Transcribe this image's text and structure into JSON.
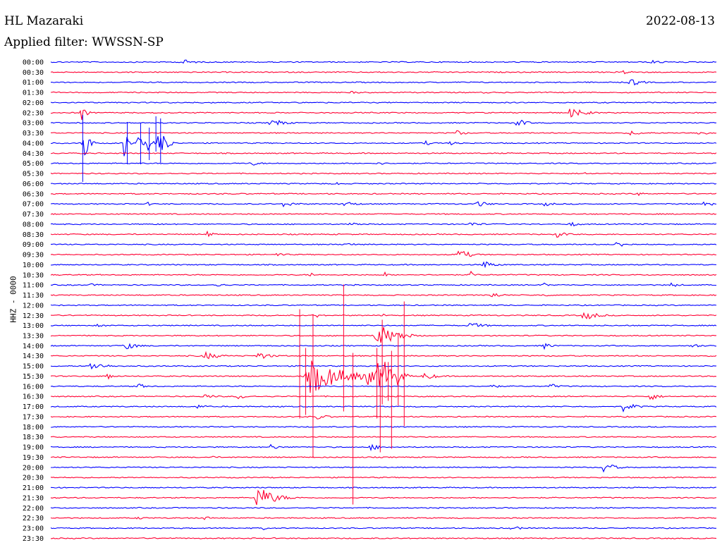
{
  "header": {
    "station": "HL Mazaraki",
    "filter": "Applied filter: WWSSN-SP",
    "date": "2022-08-13"
  },
  "chart_data": {
    "type": "line",
    "title": "HL Mazaraki",
    "subtitle": "Applied filter: WWSSN-SP",
    "date": "2022-08-13",
    "ylabel": "HHZ - 0000",
    "row_labels": [
      "00:00",
      "00:30",
      "01:00",
      "01:30",
      "02:00",
      "02:30",
      "03:00",
      "03:30",
      "04:00",
      "04:30",
      "05:00",
      "05:30",
      "06:00",
      "06:30",
      "07:00",
      "07:30",
      "08:00",
      "08:30",
      "09:00",
      "09:30",
      "10:00",
      "10:30",
      "11:00",
      "11:30",
      "12:00",
      "12:30",
      "13:00",
      "13:30",
      "14:00",
      "14:30",
      "15:00",
      "15:30",
      "16:00",
      "16:30",
      "17:00",
      "17:30",
      "18:00",
      "18:30",
      "19:00",
      "19:30",
      "20:00",
      "20:30",
      "21:00",
      "21:30",
      "22:00",
      "22:30",
      "23:00",
      "23:30"
    ],
    "minutes_per_row": 30,
    "colors": [
      "#0000ff",
      "#ff0033"
    ],
    "events": [
      {
        "row": 0,
        "t": 0.195,
        "amp": 5,
        "w": 0.016
      },
      {
        "row": 0,
        "t": 0.9,
        "amp": 3,
        "w": 0.02
      },
      {
        "row": 1,
        "t": 0.86,
        "amp": 3,
        "w": 0.02
      },
      {
        "row": 2,
        "t": 0.87,
        "amp": 6,
        "w": 0.015
      },
      {
        "row": 3,
        "t": 0.45,
        "amp": 2,
        "w": 0.015
      },
      {
        "row": 3,
        "t": 0.65,
        "amp": 2,
        "w": 0.01
      },
      {
        "row": 4,
        "t": 0.24,
        "amp": 3,
        "w": 0.006
      },
      {
        "row": 5,
        "t": 0.045,
        "amp": 14,
        "w": 0.006
      },
      {
        "row": 5,
        "t": 0.78,
        "amp": 7,
        "w": 0.02
      },
      {
        "row": 6,
        "t": 0.33,
        "amp": 7,
        "w": 0.016
      },
      {
        "row": 6,
        "t": 0.7,
        "amp": 8,
        "w": 0.01
      },
      {
        "row": 7,
        "t": 0.61,
        "amp": 4,
        "w": 0.012
      },
      {
        "row": 7,
        "t": 0.87,
        "amp": 3,
        "w": 0.025
      },
      {
        "row": 7,
        "t": 0.97,
        "amp": 3,
        "w": 0.02
      },
      {
        "row": 8,
        "t": 0.048,
        "amp": 55,
        "w": 0.005
      },
      {
        "row": 8,
        "t": 0.11,
        "amp": 30,
        "w": 0.004
      },
      {
        "row": 8,
        "t": 0.13,
        "amp": 26,
        "w": 0.004
      },
      {
        "row": 8,
        "t": 0.145,
        "amp": 22,
        "w": 0.004
      },
      {
        "row": 8,
        "t": 0.165,
        "amp": 30,
        "w": 0.004
      },
      {
        "row": 8,
        "t": 0.175,
        "amp": 18,
        "w": 0.004
      },
      {
        "row": 8,
        "t": 0.16,
        "amp": 20,
        "w": 0.004
      },
      {
        "row": 8,
        "t": 0.56,
        "amp": 4,
        "w": 0.012
      },
      {
        "row": 8,
        "t": 0.6,
        "amp": 4,
        "w": 0.012
      },
      {
        "row": 10,
        "t": 0.3,
        "amp": 4,
        "w": 0.012
      },
      {
        "row": 10,
        "t": 0.49,
        "amp": 3,
        "w": 0.01
      },
      {
        "row": 11,
        "t": 0.8,
        "amp": 2,
        "w": 0.015
      },
      {
        "row": 12,
        "t": 0.43,
        "amp": 3,
        "w": 0.004
      },
      {
        "row": 13,
        "t": 0.88,
        "amp": 4,
        "w": 0.008
      },
      {
        "row": 14,
        "t": 0.145,
        "amp": 3,
        "w": 0.01
      },
      {
        "row": 14,
        "t": 0.35,
        "amp": 5,
        "w": 0.014
      },
      {
        "row": 14,
        "t": 0.44,
        "amp": 5,
        "w": 0.014
      },
      {
        "row": 14,
        "t": 0.64,
        "amp": 5,
        "w": 0.014
      },
      {
        "row": 14,
        "t": 0.74,
        "amp": 4,
        "w": 0.012
      },
      {
        "row": 14,
        "t": 0.98,
        "amp": 5,
        "w": 0.012
      },
      {
        "row": 16,
        "t": 0.16,
        "amp": 3,
        "w": 0.005
      },
      {
        "row": 16,
        "t": 0.45,
        "amp": 4,
        "w": 0.012
      },
      {
        "row": 16,
        "t": 0.63,
        "amp": 4,
        "w": 0.014
      },
      {
        "row": 16,
        "t": 0.78,
        "amp": 4,
        "w": 0.012
      },
      {
        "row": 17,
        "t": 0.235,
        "amp": 8,
        "w": 0.006
      },
      {
        "row": 17,
        "t": 0.76,
        "amp": 5,
        "w": 0.012
      },
      {
        "row": 18,
        "t": 0.44,
        "amp": 4,
        "w": 0.012
      },
      {
        "row": 18,
        "t": 0.85,
        "amp": 5,
        "w": 0.014
      },
      {
        "row": 19,
        "t": 0.34,
        "amp": 4,
        "w": 0.01
      },
      {
        "row": 19,
        "t": 0.61,
        "amp": 10,
        "w": 0.014
      },
      {
        "row": 20,
        "t": 0.65,
        "amp": 6,
        "w": 0.014
      },
      {
        "row": 21,
        "t": 0.39,
        "amp": 6,
        "w": 0.004
      },
      {
        "row": 21,
        "t": 0.5,
        "amp": 6,
        "w": 0.004
      },
      {
        "row": 21,
        "t": 0.63,
        "amp": 6,
        "w": 0.006
      },
      {
        "row": 22,
        "t": 0.06,
        "amp": 2,
        "w": 0.015
      },
      {
        "row": 22,
        "t": 0.25,
        "amp": 4,
        "w": 0.008
      },
      {
        "row": 22,
        "t": 0.74,
        "amp": 4,
        "w": 0.006
      },
      {
        "row": 22,
        "t": 0.93,
        "amp": 4,
        "w": 0.012
      },
      {
        "row": 23,
        "t": 0.66,
        "amp": 5,
        "w": 0.014
      },
      {
        "row": 23,
        "t": 0.74,
        "amp": 8,
        "w": 0.004
      },
      {
        "row": 25,
        "t": 0.4,
        "amp": 6,
        "w": 0.004
      },
      {
        "row": 25,
        "t": 0.5,
        "amp": 3,
        "w": 0.004
      },
      {
        "row": 25,
        "t": 0.8,
        "amp": 8,
        "w": 0.016
      },
      {
        "row": 26,
        "t": 0.07,
        "amp": 2,
        "w": 0.02
      },
      {
        "row": 26,
        "t": 0.63,
        "amp": 5,
        "w": 0.018
      },
      {
        "row": 27,
        "t": 0.49,
        "amp": 20,
        "w": 0.02
      },
      {
        "row": 27,
        "t": 0.52,
        "amp": 10,
        "w": 0.012
      },
      {
        "row": 28,
        "t": 0.11,
        "amp": 6,
        "w": 0.016
      },
      {
        "row": 28,
        "t": 0.74,
        "amp": 5,
        "w": 0.012
      },
      {
        "row": 28,
        "t": 0.96,
        "amp": 5,
        "w": 0.012
      },
      {
        "row": 29,
        "t": 0.23,
        "amp": 6,
        "w": 0.02
      },
      {
        "row": 29,
        "t": 0.31,
        "amp": 6,
        "w": 0.016
      },
      {
        "row": 30,
        "t": 0.06,
        "amp": 6,
        "w": 0.02
      },
      {
        "row": 31,
        "t": 0.084,
        "amp": 8,
        "w": 0.006
      },
      {
        "row": 31,
        "t": 0.39,
        "amp": 25,
        "w": 0.04
      },
      {
        "row": 31,
        "t": 0.475,
        "amp": 18,
        "w": 0.01
      },
      {
        "row": 31,
        "t": 0.49,
        "amp": 22,
        "w": 0.01
      },
      {
        "row": 31,
        "t": 0.5,
        "amp": 26,
        "w": 0.012
      },
      {
        "row": 31,
        "t": 0.52,
        "amp": 16,
        "w": 0.008
      },
      {
        "row": 31,
        "t": 0.56,
        "amp": 6,
        "w": 0.016
      },
      {
        "row": 32,
        "t": 0.13,
        "amp": 5,
        "w": 0.01
      },
      {
        "row": 32,
        "t": 0.66,
        "amp": 4,
        "w": 0.01
      },
      {
        "row": 32,
        "t": 0.75,
        "amp": 4,
        "w": 0.012
      },
      {
        "row": 33,
        "t": 0.23,
        "amp": 4,
        "w": 0.014
      },
      {
        "row": 33,
        "t": 0.28,
        "amp": 4,
        "w": 0.014
      },
      {
        "row": 33,
        "t": 0.9,
        "amp": 7,
        "w": 0.01
      },
      {
        "row": 34,
        "t": 0.22,
        "amp": 3,
        "w": 0.014
      },
      {
        "row": 34,
        "t": 0.86,
        "amp": 7,
        "w": 0.016
      },
      {
        "row": 35,
        "t": 0.4,
        "amp": 4,
        "w": 0.016
      },
      {
        "row": 38,
        "t": 0.33,
        "amp": 4,
        "w": 0.012
      },
      {
        "row": 38,
        "t": 0.48,
        "amp": 5,
        "w": 0.014
      },
      {
        "row": 39,
        "t": 0.24,
        "amp": 3,
        "w": 0.006
      },
      {
        "row": 40,
        "t": 0.02,
        "amp": 3,
        "w": 0.004
      },
      {
        "row": 40,
        "t": 0.83,
        "amp": 10,
        "w": 0.012
      },
      {
        "row": 43,
        "t": 0.31,
        "amp": 18,
        "w": 0.02
      },
      {
        "row": 45,
        "t": 0.13,
        "amp": 2,
        "w": 0.02
      },
      {
        "row": 45,
        "t": 0.23,
        "amp": 3,
        "w": 0.01
      },
      {
        "row": 46,
        "t": 0.32,
        "amp": 3,
        "w": 0.006
      },
      {
        "row": 46,
        "t": 0.69,
        "amp": 4,
        "w": 0.014
      }
    ],
    "spikes": [
      {
        "row": 8,
        "t": 0.048,
        "up": 40,
        "down": 55
      },
      {
        "row": 8,
        "t": 0.115,
        "up": 30,
        "down": 30
      },
      {
        "row": 8,
        "t": 0.135,
        "up": 28,
        "down": 30
      },
      {
        "row": 8,
        "t": 0.148,
        "up": 22,
        "down": 24
      },
      {
        "row": 8,
        "t": 0.165,
        "up": 35,
        "down": 28
      },
      {
        "row": 8,
        "t": 0.158,
        "up": 38,
        "down": 12
      },
      {
        "row": 31,
        "t": 0.374,
        "up": 95,
        "down": 60
      },
      {
        "row": 31,
        "t": 0.383,
        "up": 40,
        "down": 55
      },
      {
        "row": 31,
        "t": 0.394,
        "up": 88,
        "down": 116
      },
      {
        "row": 31,
        "t": 0.44,
        "up": 130,
        "down": 50
      },
      {
        "row": 31,
        "t": 0.454,
        "up": 33,
        "down": 182
      },
      {
        "row": 31,
        "t": 0.498,
        "up": 80,
        "down": 40
      },
      {
        "row": 31,
        "t": 0.49,
        "up": 40,
        "down": 60
      },
      {
        "row": 31,
        "t": 0.512,
        "up": 36,
        "down": 103
      },
      {
        "row": 31,
        "t": 0.522,
        "up": 60,
        "down": 42
      },
      {
        "row": 31,
        "t": 0.531,
        "up": 106,
        "down": 71
      },
      {
        "row": 31,
        "t": 0.507,
        "up": 20,
        "down": 35
      },
      {
        "row": 31,
        "t": 0.495,
        "up": 10,
        "down": 108
      }
    ]
  }
}
